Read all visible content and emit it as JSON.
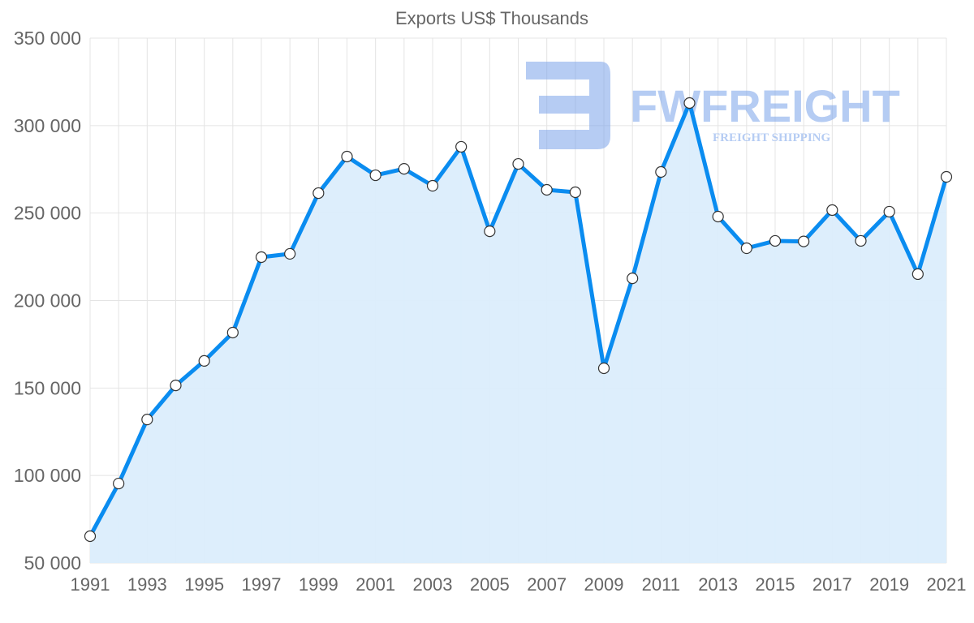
{
  "chart_data": {
    "type": "area",
    "title": "Exports US$ Thousands",
    "xlabel": "",
    "ylabel": "",
    "x": [
      1991,
      1992,
      1993,
      1994,
      1995,
      1996,
      1997,
      1998,
      1999,
      2000,
      2001,
      2002,
      2003,
      2004,
      2005,
      2006,
      2007,
      2008,
      2009,
      2010,
      2011,
      2012,
      2013,
      2014,
      2015,
      2016,
      2017,
      2018,
      2019,
      2020,
      2021
    ],
    "series": [
      {
        "name": "Exports US$ Thousands",
        "values": [
          65300,
          95400,
          132000,
          151500,
          165500,
          181700,
          224800,
          226700,
          261400,
          282300,
          271600,
          275300,
          265600,
          287900,
          239600,
          278100,
          263300,
          261900,
          161300,
          212700,
          273500,
          312900,
          248000,
          229900,
          234100,
          233800,
          251700,
          234100,
          250800,
          215100,
          270700
        ]
      }
    ],
    "ylim": [
      50000,
      350000
    ],
    "yticks": [
      50000,
      100000,
      150000,
      200000,
      250000,
      300000,
      350000
    ],
    "ytick_labels": [
      "50 000",
      "100 000",
      "150 000",
      "200 000",
      "250 000",
      "300 000",
      "350 000"
    ],
    "xtick_labels": [
      "1991",
      "1993",
      "1995",
      "1997",
      "1999",
      "2001",
      "2003",
      "2005",
      "2007",
      "2009",
      "2011",
      "2013",
      "2015",
      "2017",
      "2019",
      "2021"
    ],
    "grid": true,
    "colors": {
      "line": "#0a8cf0",
      "fill": "#dbedfc",
      "grid": "#e4e4e4",
      "point_fill": "#ffffff"
    }
  },
  "watermark": {
    "brand": "FWFREIGHT",
    "tagline": "FREIGHT SHIPPING"
  }
}
